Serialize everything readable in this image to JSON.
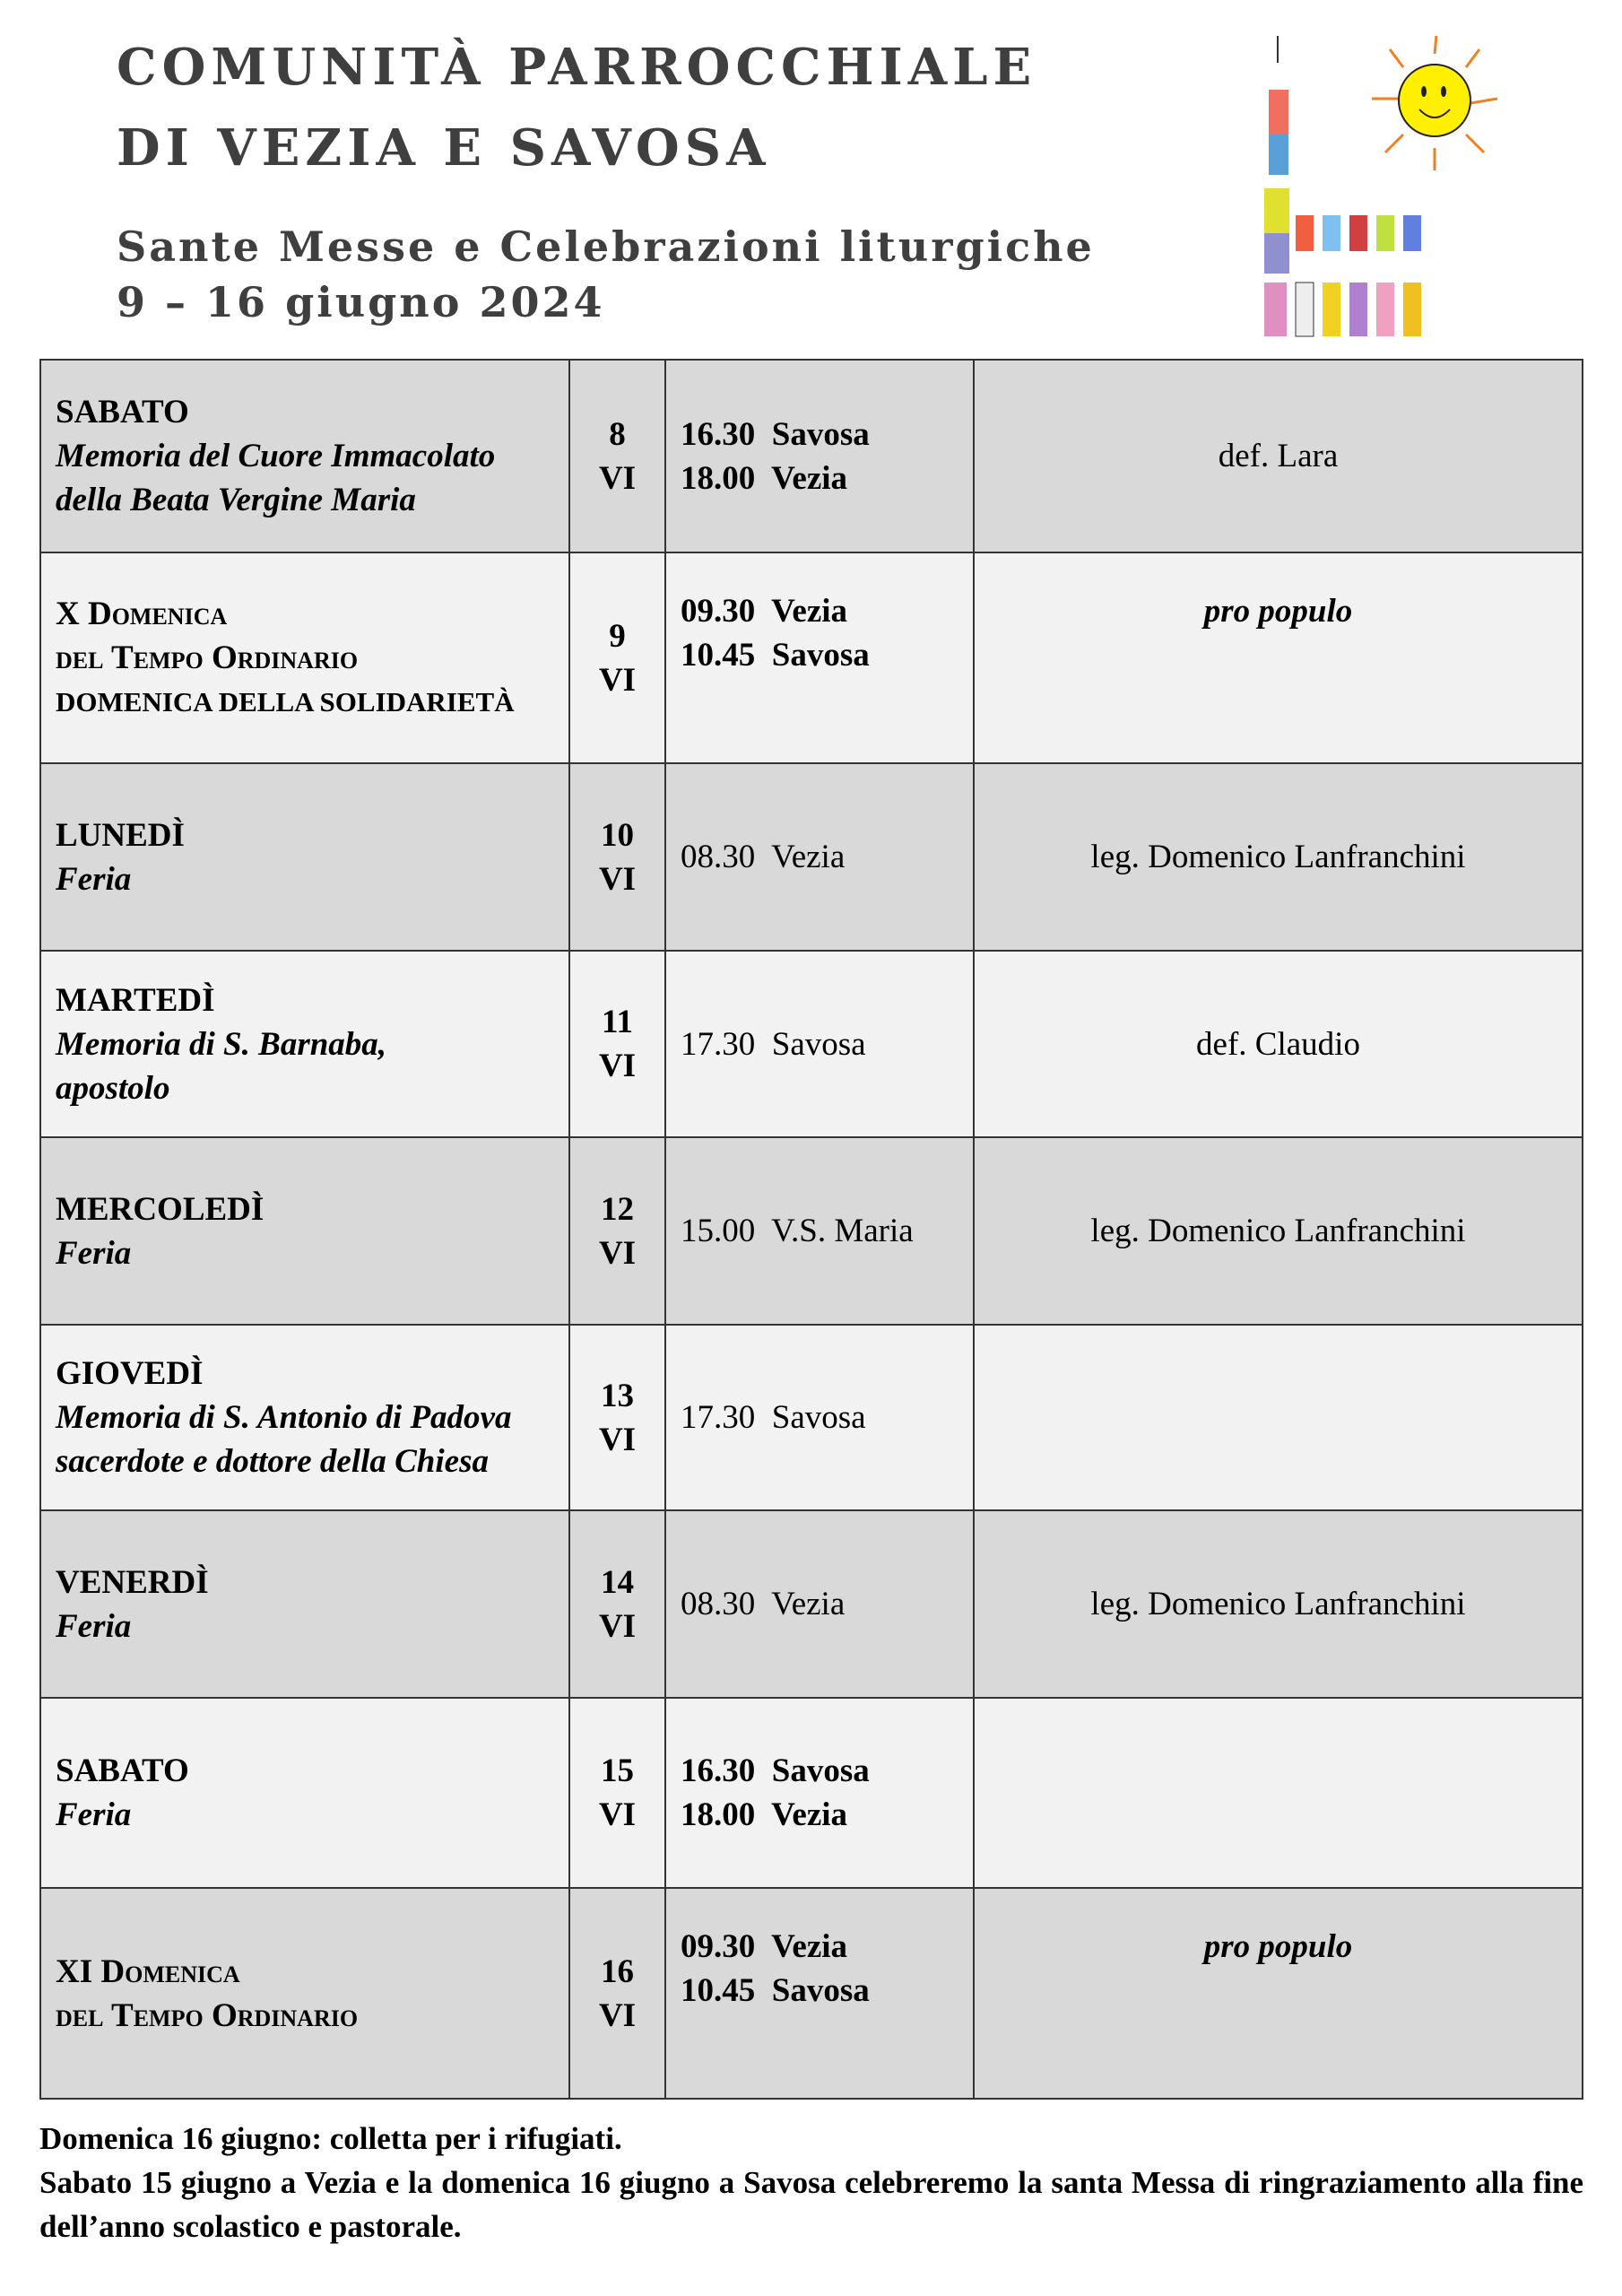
{
  "header": {
    "line1": "COMUNITÀ PARROCCHIALE",
    "line2": "DI VEZIA E SAVOSA",
    "subtitle": "Sante Messe e Celebrazioni liturgiche",
    "dates": "9 – 16 giugno 2024"
  },
  "colors": {
    "row_dark": "#d9d9d9",
    "row_light": "#f2f2f2",
    "header_text": "#3f3f3f"
  },
  "rows": [
    {
      "day": "SABATO",
      "desc": [
        "Memoria del Cuore Immacolato",
        "della Beata Vergine Maria"
      ],
      "date": "8",
      "month": "VI",
      "times": [
        "16.30  Savosa",
        "18.00  Vezia"
      ],
      "intention": "def. Lara"
    },
    {
      "day": "X Domenica",
      "desc": [
        "del Tempo Ordinario",
        "DOMENICA DELLA SOLIDARIETÀ"
      ],
      "date": "9",
      "month": "VI",
      "times": [
        "09.30  Vezia",
        "10.45  Savosa"
      ],
      "intention": "pro populo"
    },
    {
      "day": "LUNEDÌ",
      "desc": [
        "Feria"
      ],
      "date": "10",
      "month": "VI",
      "times": [
        "08.30  Vezia"
      ],
      "intention": "leg. Domenico Lanfranchini"
    },
    {
      "day": "MARTEDÌ",
      "desc": [
        "Memoria di S. Barnaba,",
        "apostolo"
      ],
      "date": "11",
      "month": "VI",
      "times": [
        "17.30  Savosa"
      ],
      "intention": "def. Claudio"
    },
    {
      "day": "MERCOLEDÌ",
      "desc": [
        "Feria"
      ],
      "date": "12",
      "month": "VI",
      "times": [
        "15.00  V.S. Maria"
      ],
      "intention": "leg. Domenico Lanfranchini"
    },
    {
      "day": "GIOVEDÌ",
      "desc": [
        "Memoria di S. Antonio di Padova",
        "sacerdote e dottore della Chiesa"
      ],
      "date": "13",
      "month": "VI",
      "times": [
        "17.30  Savosa"
      ],
      "intention": ""
    },
    {
      "day": "VENERDÌ",
      "desc": [
        "Feria"
      ],
      "date": "14",
      "month": "VI",
      "times": [
        "08.30  Vezia"
      ],
      "intention": "leg. Domenico Lanfranchini"
    },
    {
      "day": "SABATO",
      "desc": [
        "Feria"
      ],
      "date": "15",
      "month": "VI",
      "times": [
        "16.30  Savosa",
        "18.00  Vezia"
      ],
      "intention": ""
    },
    {
      "day": "XI Domenica",
      "desc": [
        "del Tempo Ordinario"
      ],
      "date": "16",
      "month": "VI",
      "times": [
        "09.30  Vezia",
        "10.45  Savosa"
      ],
      "intention": "pro populo"
    }
  ],
  "footer": {
    "note1": "Domenica 16 giugno: colletta per i rifugiati.",
    "note2": "Sabato 15 giugno a Vezia e la domenica 16 giugno a Savosa celebreremo la santa Messa di ringraziamento alla fine dell’anno scolastico e pastorale."
  }
}
